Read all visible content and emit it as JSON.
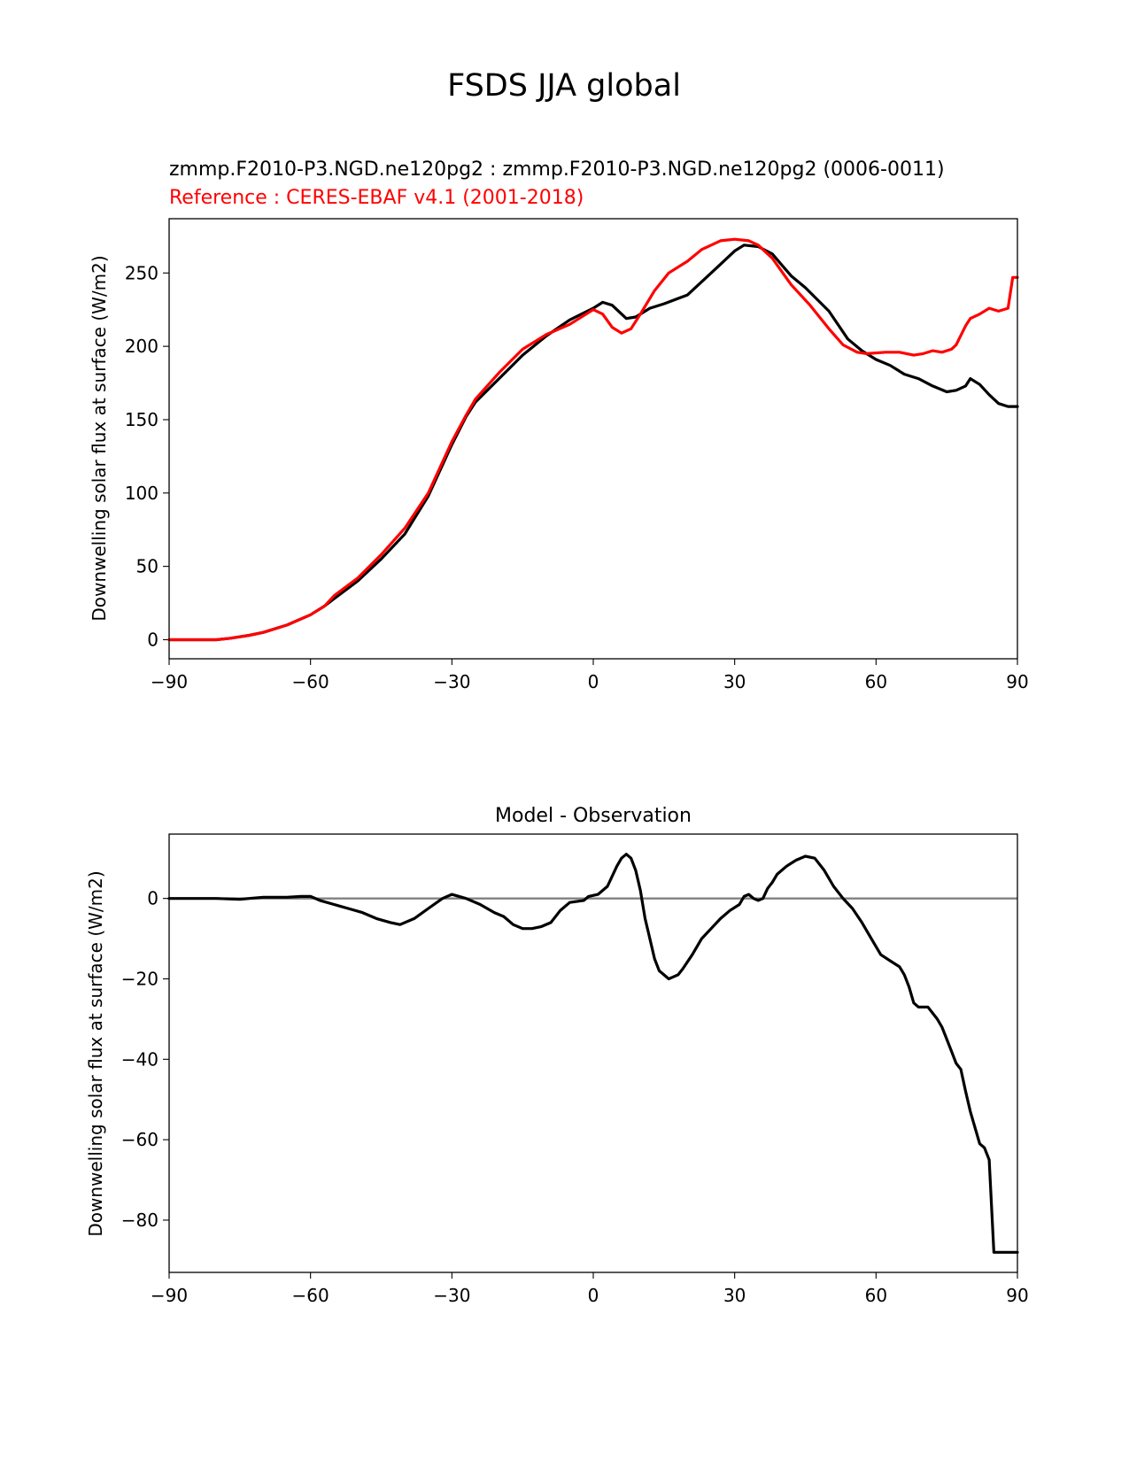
{
  "figure": {
    "title": "FSDS JJA global"
  },
  "chart_data": [
    {
      "type": "line",
      "subtitle_test": "zmmp.F2010-P3.NGD.ne120pg2 : zmmp.F2010-P3.NGD.ne120pg2 (0006-0011)",
      "subtitle_reference": "Reference : CERES-EBAF v4.1 (2001-2018)",
      "ylabel": "Downwelling solar flux at surface (W/m2)",
      "xlabel": "",
      "xlim": [
        -90,
        90
      ],
      "ylim": [
        -13,
        287
      ],
      "xticks": [
        -90,
        -60,
        -30,
        0,
        30,
        60,
        90
      ],
      "xtick_labels": [
        "−90",
        "−60",
        "−30",
        "0",
        "30",
        "60",
        "90"
      ],
      "yticks": [
        0,
        50,
        100,
        150,
        200,
        250
      ],
      "ytick_labels": [
        "0",
        "50",
        "100",
        "150",
        "200",
        "250"
      ],
      "grid": false,
      "series": [
        {
          "color": "#000000",
          "points": [
            [
              -90,
              0
            ],
            [
              -85,
              0
            ],
            [
              -80,
              0
            ],
            [
              -77,
              1
            ],
            [
              -73,
              3
            ],
            [
              -70,
              5
            ],
            [
              -65,
              10
            ],
            [
              -60,
              17
            ],
            [
              -57,
              23
            ],
            [
              -55,
              28
            ],
            [
              -50,
              40
            ],
            [
              -45,
              55
            ],
            [
              -40,
              72
            ],
            [
              -35,
              98
            ],
            [
              -30,
              133
            ],
            [
              -27,
              152
            ],
            [
              -25,
              162
            ],
            [
              -20,
              178
            ],
            [
              -15,
              194
            ],
            [
              -10,
              207
            ],
            [
              -5,
              218
            ],
            [
              0,
              226
            ],
            [
              2,
              230
            ],
            [
              4,
              228
            ],
            [
              7,
              219
            ],
            [
              9,
              220
            ],
            [
              12,
              226
            ],
            [
              15,
              229
            ],
            [
              20,
              235
            ],
            [
              25,
              250
            ],
            [
              27,
              256
            ],
            [
              30,
              265
            ],
            [
              32,
              269
            ],
            [
              35,
              268
            ],
            [
              38,
              263
            ],
            [
              42,
              248
            ],
            [
              45,
              240
            ],
            [
              50,
              224
            ],
            [
              54,
              205
            ],
            [
              57,
              197
            ],
            [
              60,
              191
            ],
            [
              63,
              187
            ],
            [
              66,
              181
            ],
            [
              69,
              178
            ],
            [
              72,
              173
            ],
            [
              75,
              169
            ],
            [
              77,
              170
            ],
            [
              79,
              173
            ],
            [
              80,
              178
            ],
            [
              82,
              174
            ],
            [
              84,
              167
            ],
            [
              86,
              161
            ],
            [
              88,
              159
            ],
            [
              90,
              159
            ]
          ]
        },
        {
          "color": "#ff0000",
          "points": [
            [
              -90,
              0
            ],
            [
              -85,
              0
            ],
            [
              -80,
              0
            ],
            [
              -77,
              1
            ],
            [
              -73,
              3
            ],
            [
              -70,
              5
            ],
            [
              -65,
              10
            ],
            [
              -60,
              17
            ],
            [
              -57,
              23
            ],
            [
              -55,
              30
            ],
            [
              -50,
              42
            ],
            [
              -45,
              58
            ],
            [
              -40,
              76
            ],
            [
              -35,
              100
            ],
            [
              -30,
              135
            ],
            [
              -27,
              153
            ],
            [
              -25,
              164
            ],
            [
              -20,
              182
            ],
            [
              -15,
              198
            ],
            [
              -10,
              208
            ],
            [
              -5,
              215
            ],
            [
              0,
              225
            ],
            [
              2,
              222
            ],
            [
              4,
              213
            ],
            [
              6,
              209
            ],
            [
              8,
              212
            ],
            [
              10,
              222
            ],
            [
              13,
              238
            ],
            [
              16,
              250
            ],
            [
              20,
              258
            ],
            [
              23,
              266
            ],
            [
              27,
              272
            ],
            [
              30,
              273
            ],
            [
              33,
              272
            ],
            [
              35,
              269
            ],
            [
              38,
              260
            ],
            [
              42,
              242
            ],
            [
              46,
              228
            ],
            [
              50,
              212
            ],
            [
              53,
              201
            ],
            [
              56,
              196
            ],
            [
              58,
              195
            ],
            [
              62,
              196
            ],
            [
              65,
              196
            ],
            [
              68,
              194
            ],
            [
              70,
              195
            ],
            [
              72,
              197
            ],
            [
              74,
              196
            ],
            [
              76,
              198
            ],
            [
              77,
              201
            ],
            [
              79,
              214
            ],
            [
              80,
              219
            ],
            [
              82,
              222
            ],
            [
              84,
              226
            ],
            [
              86,
              224
            ],
            [
              88,
              226
            ],
            [
              89,
              247
            ],
            [
              90,
              247
            ]
          ]
        }
      ]
    },
    {
      "type": "line",
      "title": "Model - Observation",
      "ylabel": "Downwelling solar flux at surface (W/m2)",
      "xlabel": "",
      "xlim": [
        -90,
        90
      ],
      "ylim": [
        -93,
        16
      ],
      "xticks": [
        -90,
        -60,
        -30,
        0,
        30,
        60,
        90
      ],
      "xtick_labels": [
        "−90",
        "−60",
        "−30",
        "0",
        "30",
        "60",
        "90"
      ],
      "yticks": [
        -80,
        -60,
        -40,
        -20,
        0
      ],
      "ytick_labels": [
        "−80",
        "−60",
        "−40",
        "−20",
        "0"
      ],
      "grid": false,
      "zero_line": {
        "y": 0,
        "color": "#808080"
      },
      "series": [
        {
          "color": "#000000",
          "points": [
            [
              -90,
              0
            ],
            [
              -80,
              0
            ],
            [
              -75,
              -0.2
            ],
            [
              -70,
              0.3
            ],
            [
              -65,
              0.3
            ],
            [
              -62,
              0.5
            ],
            [
              -60,
              0.5
            ],
            [
              -58,
              -0.5
            ],
            [
              -55,
              -1.5
            ],
            [
              -52,
              -2.5
            ],
            [
              -49,
              -3.5
            ],
            [
              -46,
              -5
            ],
            [
              -43,
              -6
            ],
            [
              -41,
              -6.5
            ],
            [
              -38,
              -5
            ],
            [
              -35,
              -2.5
            ],
            [
              -32,
              0
            ],
            [
              -30,
              1
            ],
            [
              -27,
              0
            ],
            [
              -24,
              -1.5
            ],
            [
              -21,
              -3.5
            ],
            [
              -19,
              -4.5
            ],
            [
              -17,
              -6.5
            ],
            [
              -15,
              -7.5
            ],
            [
              -13,
              -7.5
            ],
            [
              -11,
              -7
            ],
            [
              -9,
              -6
            ],
            [
              -7,
              -3
            ],
            [
              -5,
              -1
            ],
            [
              -2,
              -0.5
            ],
            [
              -1,
              0.5
            ],
            [
              1,
              1
            ],
            [
              3,
              3
            ],
            [
              5,
              8
            ],
            [
              6,
              10
            ],
            [
              7,
              11
            ],
            [
              8,
              10
            ],
            [
              9,
              7
            ],
            [
              10,
              2
            ],
            [
              11,
              -5
            ],
            [
              12,
              -10
            ],
            [
              13,
              -15
            ],
            [
              14,
              -18
            ],
            [
              15,
              -19
            ],
            [
              16,
              -20
            ],
            [
              17,
              -19.5
            ],
            [
              18,
              -19
            ],
            [
              19,
              -17.5
            ],
            [
              21,
              -14
            ],
            [
              23,
              -10
            ],
            [
              25,
              -7.5
            ],
            [
              27,
              -5
            ],
            [
              29,
              -3
            ],
            [
              31,
              -1.5
            ],
            [
              32,
              0.5
            ],
            [
              33,
              1
            ],
            [
              34,
              0
            ],
            [
              35,
              -0.5
            ],
            [
              36,
              0
            ],
            [
              37,
              2.5
            ],
            [
              38,
              4
            ],
            [
              39,
              6
            ],
            [
              41,
              8
            ],
            [
              43,
              9.5
            ],
            [
              45,
              10.5
            ],
            [
              47,
              10
            ],
            [
              49,
              7
            ],
            [
              51,
              3
            ],
            [
              53,
              0
            ],
            [
              55,
              -2.5
            ],
            [
              57,
              -6
            ],
            [
              59,
              -10
            ],
            [
              61,
              -14
            ],
            [
              63,
              -15.5
            ],
            [
              65,
              -17
            ],
            [
              66,
              -19
            ],
            [
              67,
              -22
            ],
            [
              68,
              -26
            ],
            [
              69,
              -27
            ],
            [
              71,
              -27
            ],
            [
              72,
              -28.5
            ],
            [
              73,
              -30
            ],
            [
              74,
              -32
            ],
            [
              75,
              -35
            ],
            [
              76,
              -38
            ],
            [
              77,
              -41
            ],
            [
              78,
              -42.5
            ],
            [
              79,
              -48
            ],
            [
              80,
              -53
            ],
            [
              81,
              -57
            ],
            [
              82,
              -61
            ],
            [
              83,
              -62
            ],
            [
              84,
              -65
            ],
            [
              85,
              -88
            ],
            [
              86,
              -88
            ],
            [
              90,
              -88
            ]
          ]
        }
      ]
    }
  ]
}
